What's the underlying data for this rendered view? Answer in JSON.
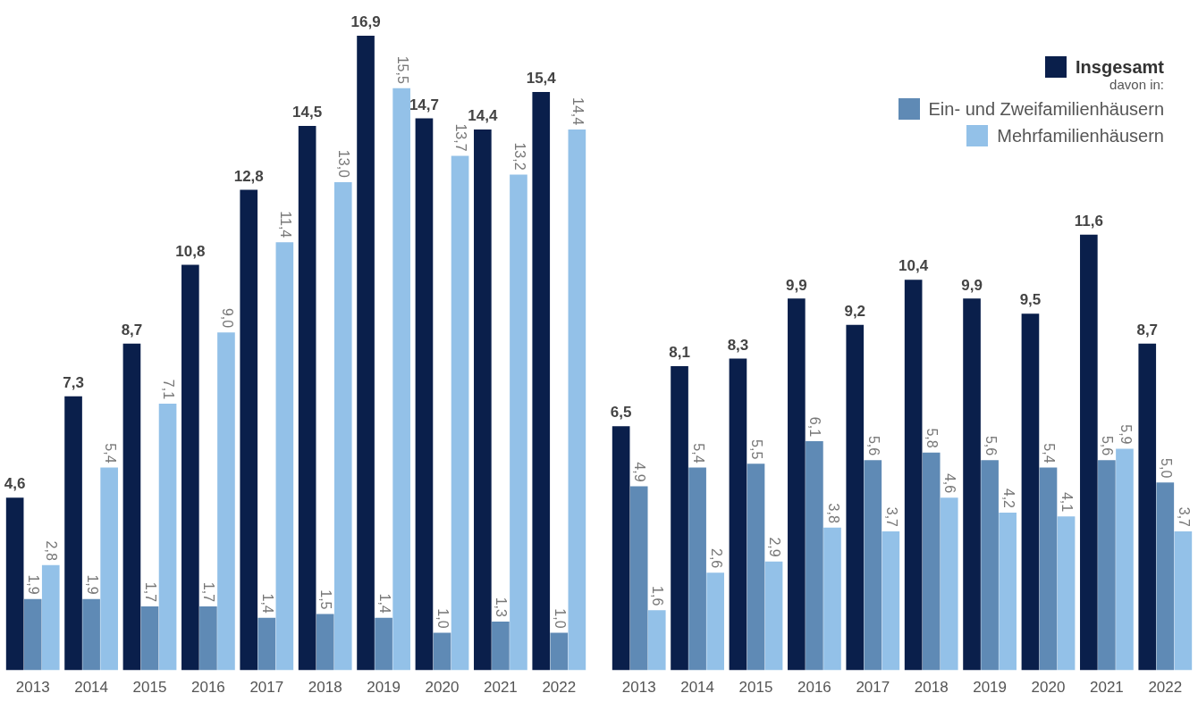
{
  "chart_data": [
    {
      "type": "bar",
      "categories": [
        "2013",
        "2014",
        "2015",
        "2016",
        "2017",
        "2018",
        "2019",
        "2020",
        "2021",
        "2022"
      ],
      "legend": false,
      "grid": false,
      "series": [
        {
          "color": "#0a1f4b",
          "values": [
            4.6,
            7.3,
            8.7,
            10.8,
            12.8,
            14.5,
            16.9,
            14.7,
            14.4,
            15.4
          ],
          "value_labels": [
            "4,6",
            "7,3",
            "8,7",
            "10,8",
            "12,8",
            "14,5",
            "16,9",
            "14,7",
            "14,4",
            "15,4"
          ]
        },
        {
          "color": "#5f8ab5",
          "values": [
            1.9,
            1.9,
            1.7,
            1.7,
            1.4,
            1.5,
            1.4,
            1.0,
            1.3,
            1.0
          ],
          "value_labels": [
            "1,9",
            "1,9",
            "1,7",
            "1,7",
            "1,4",
            "1,5",
            "1,4",
            "1,0",
            "1,3",
            "1,0"
          ]
        },
        {
          "color": "#93c1e8",
          "values": [
            2.8,
            5.4,
            7.1,
            9.0,
            11.4,
            13.0,
            15.5,
            13.7,
            13.2,
            14.4
          ],
          "value_labels": [
            "2,8",
            "5,4",
            "7,1",
            "9,0",
            "11,4",
            "13,0",
            "15,5",
            "13,7",
            "13,2",
            "14,4"
          ]
        }
      ]
    },
    {
      "type": "bar",
      "categories": [
        "2013",
        "2014",
        "2015",
        "2016",
        "2017",
        "2018",
        "2019",
        "2020",
        "2021",
        "2022"
      ],
      "legend": "top right",
      "grid": false,
      "annotations": [
        "davon in:"
      ],
      "series": [
        {
          "name": "Insgesamt",
          "color": "#0a1f4b",
          "values": [
            6.5,
            8.1,
            8.3,
            9.9,
            9.2,
            10.4,
            9.9,
            9.5,
            11.6,
            8.7
          ],
          "value_labels": [
            "6,5",
            "8,1",
            "8,3",
            "9,9",
            "9,2",
            "10,4",
            "9,9",
            "9,5",
            "11,6",
            "8,7"
          ]
        },
        {
          "name": "Ein- und Zweifamilienhäusern",
          "color": "#5f8ab5",
          "values": [
            4.9,
            5.4,
            5.5,
            6.1,
            5.6,
            5.8,
            5.6,
            5.4,
            5.6,
            5.0
          ],
          "value_labels": [
            "4,9",
            "5,4",
            "5,5",
            "6,1",
            "5,6",
            "5,8",
            "5,6",
            "5,4",
            "5,6",
            "5,0"
          ]
        },
        {
          "name": "Mehrfamilienhäusern",
          "color": "#93c1e8",
          "values": [
            1.6,
            2.6,
            2.9,
            3.8,
            3.7,
            4.6,
            4.2,
            4.1,
            5.9,
            3.7
          ],
          "value_labels": [
            "1,6",
            "2,6",
            "2,9",
            "3,8",
            "3,7",
            "4,6",
            "4,2",
            "4,1",
            "5,9",
            "3,7"
          ]
        }
      ]
    }
  ]
}
